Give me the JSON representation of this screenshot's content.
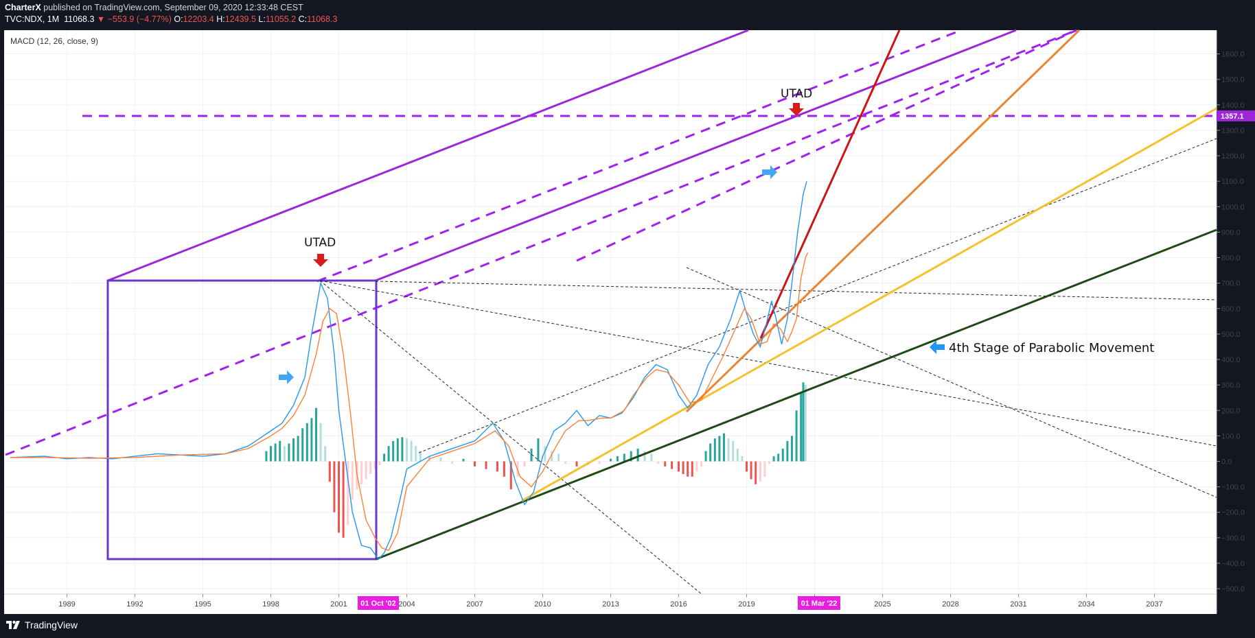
{
  "header": {
    "publisher": "CharterX",
    "published_text": " published on TradingView.com, September 09, 2020 12:33:48 CEST",
    "symbol": "TVC:NDX, 1M",
    "last": "11068.3",
    "change": "−553.9 (−4.77%)",
    "o_label": "O:",
    "o_value": "12203.4",
    "h_label": "H:",
    "h_value": "12439.5",
    "l_label": "L:",
    "l_value": "11055.2",
    "c_label": "C:",
    "c_value": "11068.3"
  },
  "footer": {
    "brand": "TradingView"
  },
  "chart_data": {
    "type": "line",
    "title": "MACD (12, 26, close, 9)",
    "x_axis": {
      "labels": [
        "1989",
        "1992",
        "1995",
        "1998",
        "2001",
        "2004",
        "2007",
        "2010",
        "2013",
        "2016",
        "2019",
        "2022",
        "2025",
        "2028",
        "2031",
        "2034",
        "2037"
      ]
    },
    "y_axis": {
      "labels": [
        "1600.0",
        "1500.0",
        "1400.0",
        "1300.0",
        "1200.0",
        "1100.0",
        "1000.0",
        "900.0",
        "800.0",
        "700.0",
        "600.0",
        "500.0",
        "400.0",
        "300.0",
        "200.0",
        "100.0",
        "0.0",
        "−100.0",
        "−200.0",
        "−300.0",
        "−400.0",
        "−500.0"
      ],
      "range": [
        -500,
        1600
      ]
    },
    "price_marker": "1357.1",
    "date_markers": [
      "01 Oct '02",
      "01 Mar '22"
    ],
    "annotations": [
      "UTAD",
      "UTAD",
      "4th Stage of Parabolic Movement"
    ],
    "series": [
      {
        "name": "MACD",
        "color": "#2196f3",
        "x": [
          1986.5,
          1988,
          1989,
          1990,
          1991,
          1992,
          1993,
          1994,
          1995,
          1996,
          1997,
          1998,
          1998.5,
          1999,
          1999.5,
          1999.8,
          2000.0,
          2000.2,
          2000.5,
          2000.8,
          2001.0,
          2001.3,
          2001.6,
          2002.0,
          2002.4,
          2002.75,
          2003.0,
          2003.3,
          2003.7,
          2004,
          2005,
          2006,
          2007,
          2007.8,
          2008.3,
          2008.8,
          2009.2,
          2009.6,
          2010,
          2010.5,
          2011,
          2011.5,
          2012,
          2012.5,
          2013,
          2013.5,
          2014,
          2014.5,
          2015,
          2015.5,
          2016.0,
          2016.4,
          2016.8,
          2017.3,
          2017.8,
          2018.3,
          2018.7,
          2019.0,
          2019.3,
          2019.6,
          2019.9,
          2020.1,
          2020.3,
          2020.55,
          2020.8,
          2021.0,
          2021.25,
          2021.5,
          2021.65
        ],
        "values": [
          15,
          20,
          10,
          15,
          10,
          20,
          30,
          25,
          20,
          30,
          60,
          120,
          150,
          220,
          330,
          500,
          600,
          700,
          640,
          420,
          200,
          0,
          -200,
          -330,
          -340,
          -385,
          -360,
          -300,
          -150,
          -30,
          20,
          50,
          80,
          150,
          80,
          -80,
          -170,
          -120,
          20,
          120,
          150,
          200,
          140,
          180,
          170,
          190,
          250,
          330,
          380,
          360,
          260,
          210,
          260,
          380,
          450,
          560,
          670,
          580,
          500,
          450,
          550,
          630,
          560,
          460,
          560,
          700,
          900,
          1050,
          1100
        ]
      },
      {
        "name": "Signal",
        "color": "#ff7f32",
        "x": [
          1986.5,
          1988,
          1990,
          1992,
          1994,
          1996,
          1997,
          1998,
          1998.5,
          1999,
          1999.5,
          2000.0,
          2000.3,
          2000.6,
          2000.9,
          2001.2,
          2001.5,
          2001.8,
          2002.2,
          2002.6,
          2002.9,
          2003.2,
          2003.6,
          2004,
          2005,
          2006,
          2007,
          2007.9,
          2008.5,
          2009.0,
          2009.5,
          2010,
          2010.6,
          2011,
          2011.6,
          2012,
          2012.6,
          2013,
          2013.6,
          2014,
          2014.6,
          2015,
          2015.5,
          2016.0,
          2016.5,
          2017,
          2017.5,
          2018,
          2018.5,
          2018.9,
          2019.2,
          2019.6,
          2019.9,
          2020.2,
          2020.5,
          2020.8,
          2021.0,
          2021.2,
          2021.4,
          2021.6,
          2021.7
        ],
        "values": [
          15,
          15,
          12,
          15,
          25,
          30,
          50,
          100,
          130,
          180,
          260,
          420,
          550,
          600,
          580,
          420,
          200,
          -50,
          -230,
          -300,
          -340,
          -350,
          -280,
          -100,
          10,
          40,
          70,
          120,
          60,
          -60,
          -100,
          -40,
          60,
          120,
          160,
          160,
          170,
          170,
          200,
          260,
          330,
          360,
          350,
          300,
          230,
          240,
          330,
          420,
          520,
          600,
          560,
          460,
          470,
          540,
          520,
          470,
          510,
          560,
          720,
          800,
          820
        ]
      },
      {
        "name": "Histogram",
        "x": [
          1997.8,
          1998.0,
          1998.2,
          1998.4,
          1998.6,
          1998.8,
          1999.0,
          1999.2,
          1999.4,
          1999.6,
          1999.8,
          2000.0,
          2000.2,
          2000.4,
          2000.6,
          2000.8,
          2001.0,
          2001.2,
          2001.4,
          2001.6,
          2001.8,
          2002.0,
          2002.2,
          2002.4,
          2002.6,
          2002.8,
          2003.0,
          2003.2,
          2003.4,
          2003.6,
          2003.8,
          2004.0,
          2004.2,
          2004.4,
          2004.6,
          2005,
          2005.5,
          2006,
          2006.5,
          2007,
          2007.5,
          2008.0,
          2008.3,
          2008.6,
          2008.9,
          2009.2,
          2009.5,
          2009.8,
          2010.1,
          2010.4,
          2010.7,
          2011,
          2011.5,
          2012,
          2012.5,
          2013,
          2013.3,
          2013.6,
          2013.9,
          2014.2,
          2014.5,
          2014.8,
          2015.1,
          2015.4,
          2015.7,
          2016.0,
          2016.2,
          2016.4,
          2016.6,
          2016.8,
          2017.0,
          2017.2,
          2017.4,
          2017.6,
          2017.8,
          2018.0,
          2018.2,
          2018.4,
          2018.6,
          2018.8,
          2019.0,
          2019.2,
          2019.4,
          2019.6,
          2019.8,
          2020.0,
          2020.2,
          2020.4,
          2020.6,
          2020.8,
          2021.0,
          2021.2,
          2021.4,
          2021.5,
          2021.6
        ],
        "values": [
          40,
          60,
          70,
          80,
          60,
          70,
          90,
          100,
          130,
          150,
          170,
          210,
          150,
          60,
          -80,
          -200,
          -280,
          -300,
          -250,
          -150,
          -110,
          -90,
          -70,
          -50,
          -30,
          -15,
          30,
          60,
          80,
          90,
          95,
          90,
          80,
          60,
          40,
          20,
          15,
          -10,
          10,
          -20,
          -30,
          -40,
          -60,
          -110,
          -60,
          -20,
          50,
          90,
          60,
          40,
          30,
          -10,
          -20,
          -15,
          -10,
          10,
          20,
          30,
          40,
          50,
          40,
          30,
          -10,
          -20,
          -30,
          -40,
          -50,
          -60,
          -60,
          -40,
          -20,
          40,
          70,
          90,
          100,
          110,
          90,
          80,
          50,
          20,
          -40,
          -70,
          -90,
          -80,
          -60,
          -10,
          20,
          30,
          50,
          80,
          100,
          200,
          270,
          310,
          300
        ]
      }
    ]
  }
}
